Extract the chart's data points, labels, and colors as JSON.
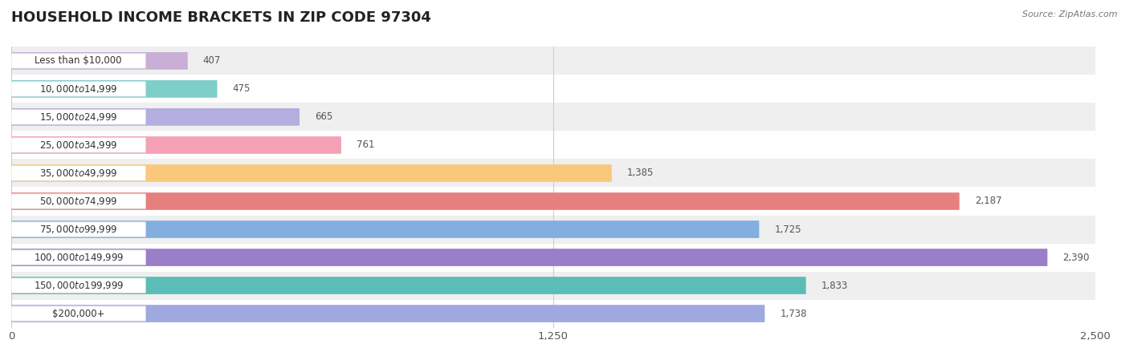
{
  "title": "HOUSEHOLD INCOME BRACKETS IN ZIP CODE 97304",
  "source": "Source: ZipAtlas.com",
  "categories": [
    "Less than $10,000",
    "$10,000 to $14,999",
    "$15,000 to $24,999",
    "$25,000 to $34,999",
    "$35,000 to $49,999",
    "$50,000 to $74,999",
    "$75,000 to $99,999",
    "$100,000 to $149,999",
    "$150,000 to $199,999",
    "$200,000+"
  ],
  "values": [
    407,
    475,
    665,
    761,
    1385,
    2187,
    1725,
    2390,
    1833,
    1738
  ],
  "bar_colors": [
    "#c9aed6",
    "#7ececa",
    "#b3aee0",
    "#f4a0b5",
    "#f9c87a",
    "#e87f7f",
    "#82aee0",
    "#9b7ec8",
    "#5bbcb8",
    "#a0a8e0"
  ],
  "bg_row_colors": [
    "#efefef",
    "#ffffff"
  ],
  "xlim": [
    0,
    2500
  ],
  "xticks": [
    0,
    1250,
    2500
  ],
  "xtick_labels": [
    "0",
    "1,250",
    "2,500"
  ],
  "label_color": "#555555",
  "title_fontsize": 13,
  "tick_fontsize": 9.5,
  "bar_label_fontsize": 8.5,
  "category_fontsize": 8.5,
  "background_color": "#ffffff",
  "bar_height": 0.62
}
